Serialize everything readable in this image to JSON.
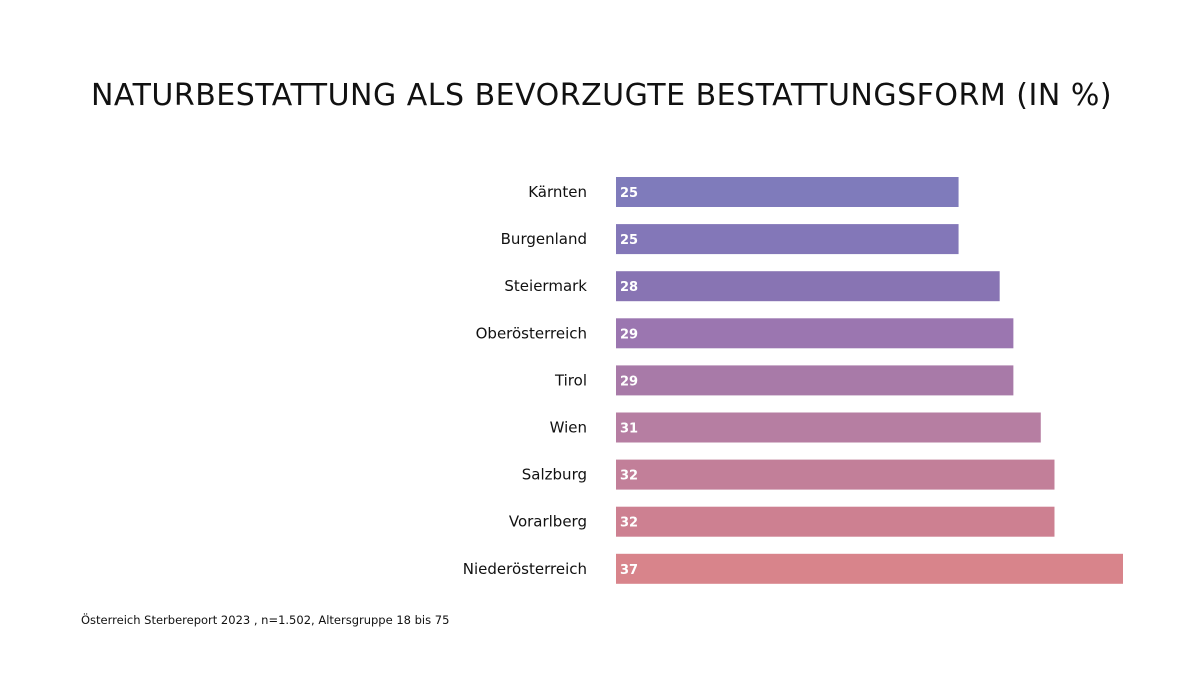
{
  "chart_data": {
    "type": "bar",
    "orientation": "horizontal",
    "title": "NATURBESTATTUNG ALS BEVORZUGTE BESTATTUNGSFORM (IN %)",
    "xlabel": "",
    "ylabel": "",
    "categories": [
      "Kärnten",
      "Burgenland",
      "Steiermark",
      "Oberösterreich",
      "Tirol",
      "Wien",
      "Salzburg",
      "Vorarlberg",
      "Niederösterreich"
    ],
    "values": [
      25,
      25,
      28,
      29,
      29,
      31,
      32,
      32,
      37
    ],
    "value_labels": [
      "25",
      "25",
      "28",
      "29",
      "29",
      "31",
      "32",
      "32",
      "37"
    ],
    "xlim": [
      0,
      37
    ],
    "grid": false,
    "legend": "none",
    "colors": [
      "#7f7bbb",
      "#8377b8",
      "#8874b3",
      "#9b76b0",
      "#a87aa8",
      "#b67ea2",
      "#c27f99",
      "#cd8091",
      "#d8848b"
    ]
  },
  "footnote": "Österreich Sterbereport 2023 , n=1.502, Altersgruppe 18 bis 75"
}
